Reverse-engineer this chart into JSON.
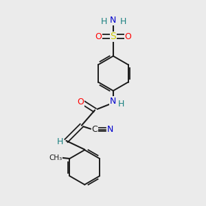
{
  "background_color": "#ebebeb",
  "bond_color": "#1a1a1a",
  "atom_colors": {
    "N": "#0000cc",
    "O": "#ff0000",
    "S": "#cccc00",
    "C": "#1a1a1a",
    "H": "#1a8080"
  },
  "figsize": [
    3.0,
    3.0
  ],
  "dpi": 100
}
